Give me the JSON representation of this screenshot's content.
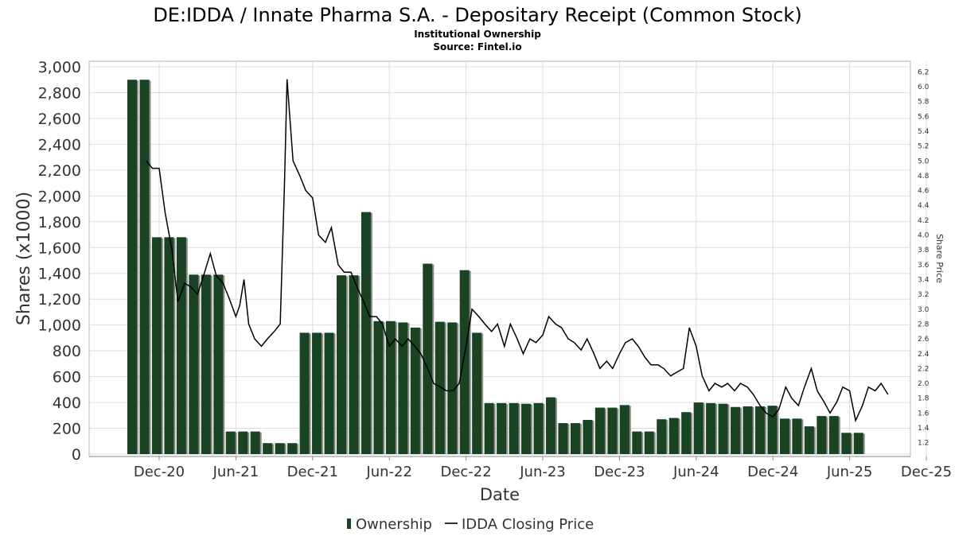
{
  "chart_data": {
    "type": "bar",
    "title": "DE:IDDA / Innate Pharma S.A. - Depositary Receipt (Common Stock)",
    "subtitle_1": "Institutional Ownership",
    "subtitle_2": "Source: Fintel.io",
    "xlabel": "Date",
    "ylabel": "Shares (x1000)",
    "y2label": "Share Price",
    "ylim": [
      0,
      3000
    ],
    "y2lim": [
      1.1,
      6.3
    ],
    "x_ticks": [
      "Dec-20",
      "Jun-21",
      "Dec-21",
      "Jun-22",
      "Dec-22",
      "Jun-23",
      "Dec-23",
      "Jun-24",
      "Dec-24",
      "Jun-25",
      "Dec-25"
    ],
    "y_ticks": [
      0,
      200,
      400,
      600,
      800,
      "1,000",
      "1,200",
      "1,400",
      "1,600",
      "1,800",
      "2,000",
      "2,200",
      "2,400",
      "2,600",
      "2,800",
      "3,000"
    ],
    "y2_ticks": [
      "1.2",
      "1.4",
      "1.6",
      "1.8",
      "2.0",
      "2.2",
      "2.4",
      "2.6",
      "2.8",
      "3.0",
      "3.2",
      "3.4",
      "3.6",
      "3.8",
      "4.0",
      "4.2",
      "4.4",
      "4.6",
      "4.8",
      "5.0",
      "5.2",
      "5.4",
      "5.6",
      "5.8",
      "6.0",
      "6.2"
    ],
    "grid": true,
    "legend_position": "bottom",
    "colors": {
      "bar": "#1a4324",
      "bar_shadow": "#8c8c8c",
      "line": "#000000",
      "grid": "#dddddd"
    },
    "series": [
      {
        "name": "Ownership",
        "type": "bar",
        "values": [
          2900,
          2900,
          1680,
          1680,
          1680,
          1390,
          1390,
          1390,
          175,
          175,
          175,
          85,
          85,
          85,
          940,
          940,
          940,
          1385,
          1385,
          1875,
          1030,
          1030,
          1020,
          980,
          1475,
          1025,
          1020,
          1425,
          940,
          395,
          395,
          395,
          390,
          395,
          440,
          240,
          240,
          265,
          360,
          360,
          380,
          175,
          175,
          270,
          280,
          325,
          400,
          395,
          390,
          365,
          370,
          370,
          375,
          275,
          275,
          215,
          295,
          295,
          165,
          165
        ]
      },
      {
        "name": "IDDA Closing Price",
        "type": "line",
        "points": [
          [
            "2020-11-01",
            5.0
          ],
          [
            "2020-11-15",
            4.9
          ],
          [
            "2020-12-01",
            4.9
          ],
          [
            "2020-12-15",
            4.3
          ],
          [
            "2021-01-01",
            3.8
          ],
          [
            "2021-01-15",
            3.1
          ],
          [
            "2021-02-01",
            3.35
          ],
          [
            "2021-02-15",
            3.3
          ],
          [
            "2021-03-01",
            3.2
          ],
          [
            "2021-03-15",
            3.45
          ],
          [
            "2021-04-01",
            3.75
          ],
          [
            "2021-04-15",
            3.45
          ],
          [
            "2021-05-01",
            3.35
          ],
          [
            "2021-05-15",
            3.15
          ],
          [
            "2021-06-01",
            2.9
          ],
          [
            "2021-06-10",
            3.05
          ],
          [
            "2021-06-20",
            3.4
          ],
          [
            "2021-07-01",
            2.8
          ],
          [
            "2021-07-15",
            2.6
          ],
          [
            "2021-08-01",
            2.5
          ],
          [
            "2021-08-15",
            2.6
          ],
          [
            "2021-09-01",
            2.7
          ],
          [
            "2021-09-15",
            2.8
          ],
          [
            "2021-09-25",
            4.7
          ],
          [
            "2021-10-01",
            6.1
          ],
          [
            "2021-10-15",
            5.0
          ],
          [
            "2021-11-01",
            4.8
          ],
          [
            "2021-11-15",
            4.6
          ],
          [
            "2021-12-01",
            4.5
          ],
          [
            "2021-12-15",
            4.0
          ],
          [
            "2022-01-01",
            3.9
          ],
          [
            "2022-01-15",
            4.1
          ],
          [
            "2022-02-01",
            3.6
          ],
          [
            "2022-02-15",
            3.5
          ],
          [
            "2022-03-01",
            3.5
          ],
          [
            "2022-03-15",
            3.3
          ],
          [
            "2022-04-01",
            3.1
          ],
          [
            "2022-04-15",
            2.9
          ],
          [
            "2022-05-01",
            2.9
          ],
          [
            "2022-05-15",
            2.8
          ],
          [
            "2022-06-01",
            2.5
          ],
          [
            "2022-06-15",
            2.6
          ],
          [
            "2022-07-01",
            2.5
          ],
          [
            "2022-07-15",
            2.6
          ],
          [
            "2022-08-01",
            2.5
          ],
          [
            "2022-08-15",
            2.4
          ],
          [
            "2022-09-01",
            2.2
          ],
          [
            "2022-09-15",
            2.0
          ],
          [
            "2022-10-01",
            1.95
          ],
          [
            "2022-10-15",
            1.9
          ],
          [
            "2022-11-01",
            1.9
          ],
          [
            "2022-11-15",
            2.0
          ],
          [
            "2022-12-01",
            2.5
          ],
          [
            "2022-12-15",
            3.0
          ],
          [
            "2023-01-01",
            2.9
          ],
          [
            "2023-01-15",
            2.8
          ],
          [
            "2023-02-01",
            2.7
          ],
          [
            "2023-02-15",
            2.8
          ],
          [
            "2023-03-01",
            2.5
          ],
          [
            "2023-03-15",
            2.8
          ],
          [
            "2023-04-01",
            2.6
          ],
          [
            "2023-04-15",
            2.4
          ],
          [
            "2023-05-01",
            2.6
          ],
          [
            "2023-05-15",
            2.55
          ],
          [
            "2023-06-01",
            2.65
          ],
          [
            "2023-06-15",
            2.9
          ],
          [
            "2023-07-01",
            2.8
          ],
          [
            "2023-07-15",
            2.75
          ],
          [
            "2023-08-01",
            2.6
          ],
          [
            "2023-08-15",
            2.55
          ],
          [
            "2023-09-01",
            2.45
          ],
          [
            "2023-09-15",
            2.6
          ],
          [
            "2023-10-01",
            2.4
          ],
          [
            "2023-10-15",
            2.2
          ],
          [
            "2023-11-01",
            2.3
          ],
          [
            "2023-11-15",
            2.2
          ],
          [
            "2023-12-01",
            2.4
          ],
          [
            "2023-12-15",
            2.55
          ],
          [
            "2024-01-01",
            2.6
          ],
          [
            "2024-01-15",
            2.5
          ],
          [
            "2024-02-01",
            2.35
          ],
          [
            "2024-02-15",
            2.25
          ],
          [
            "2024-03-01",
            2.25
          ],
          [
            "2024-03-15",
            2.2
          ],
          [
            "2024-04-01",
            2.1
          ],
          [
            "2024-04-15",
            2.15
          ],
          [
            "2024-05-01",
            2.2
          ],
          [
            "2024-05-15",
            2.75
          ],
          [
            "2024-06-01",
            2.5
          ],
          [
            "2024-06-15",
            2.1
          ],
          [
            "2024-07-01",
            1.9
          ],
          [
            "2024-07-15",
            2.0
          ],
          [
            "2024-08-01",
            1.95
          ],
          [
            "2024-08-15",
            2.0
          ],
          [
            "2024-09-01",
            1.9
          ],
          [
            "2024-09-15",
            2.0
          ],
          [
            "2024-10-01",
            1.95
          ],
          [
            "2024-10-15",
            1.85
          ],
          [
            "2024-11-01",
            1.7
          ],
          [
            "2024-11-15",
            1.6
          ],
          [
            "2024-12-01",
            1.55
          ],
          [
            "2024-12-15",
            1.65
          ],
          [
            "2025-01-01",
            1.95
          ],
          [
            "2025-01-15",
            1.8
          ],
          [
            "2025-02-01",
            1.7
          ],
          [
            "2025-02-15",
            1.95
          ],
          [
            "2025-03-01",
            2.2
          ],
          [
            "2025-03-15",
            1.9
          ],
          [
            "2025-04-01",
            1.75
          ],
          [
            "2025-04-15",
            1.6
          ],
          [
            "2025-05-01",
            1.75
          ],
          [
            "2025-05-15",
            1.95
          ],
          [
            "2025-06-01",
            1.9
          ],
          [
            "2025-06-15",
            1.5
          ],
          [
            "2025-07-01",
            1.7
          ],
          [
            "2025-07-15",
            1.95
          ],
          [
            "2025-08-01",
            1.9
          ],
          [
            "2025-08-15",
            2.0
          ],
          [
            "2025-09-01",
            1.85
          ]
        ]
      }
    ]
  }
}
